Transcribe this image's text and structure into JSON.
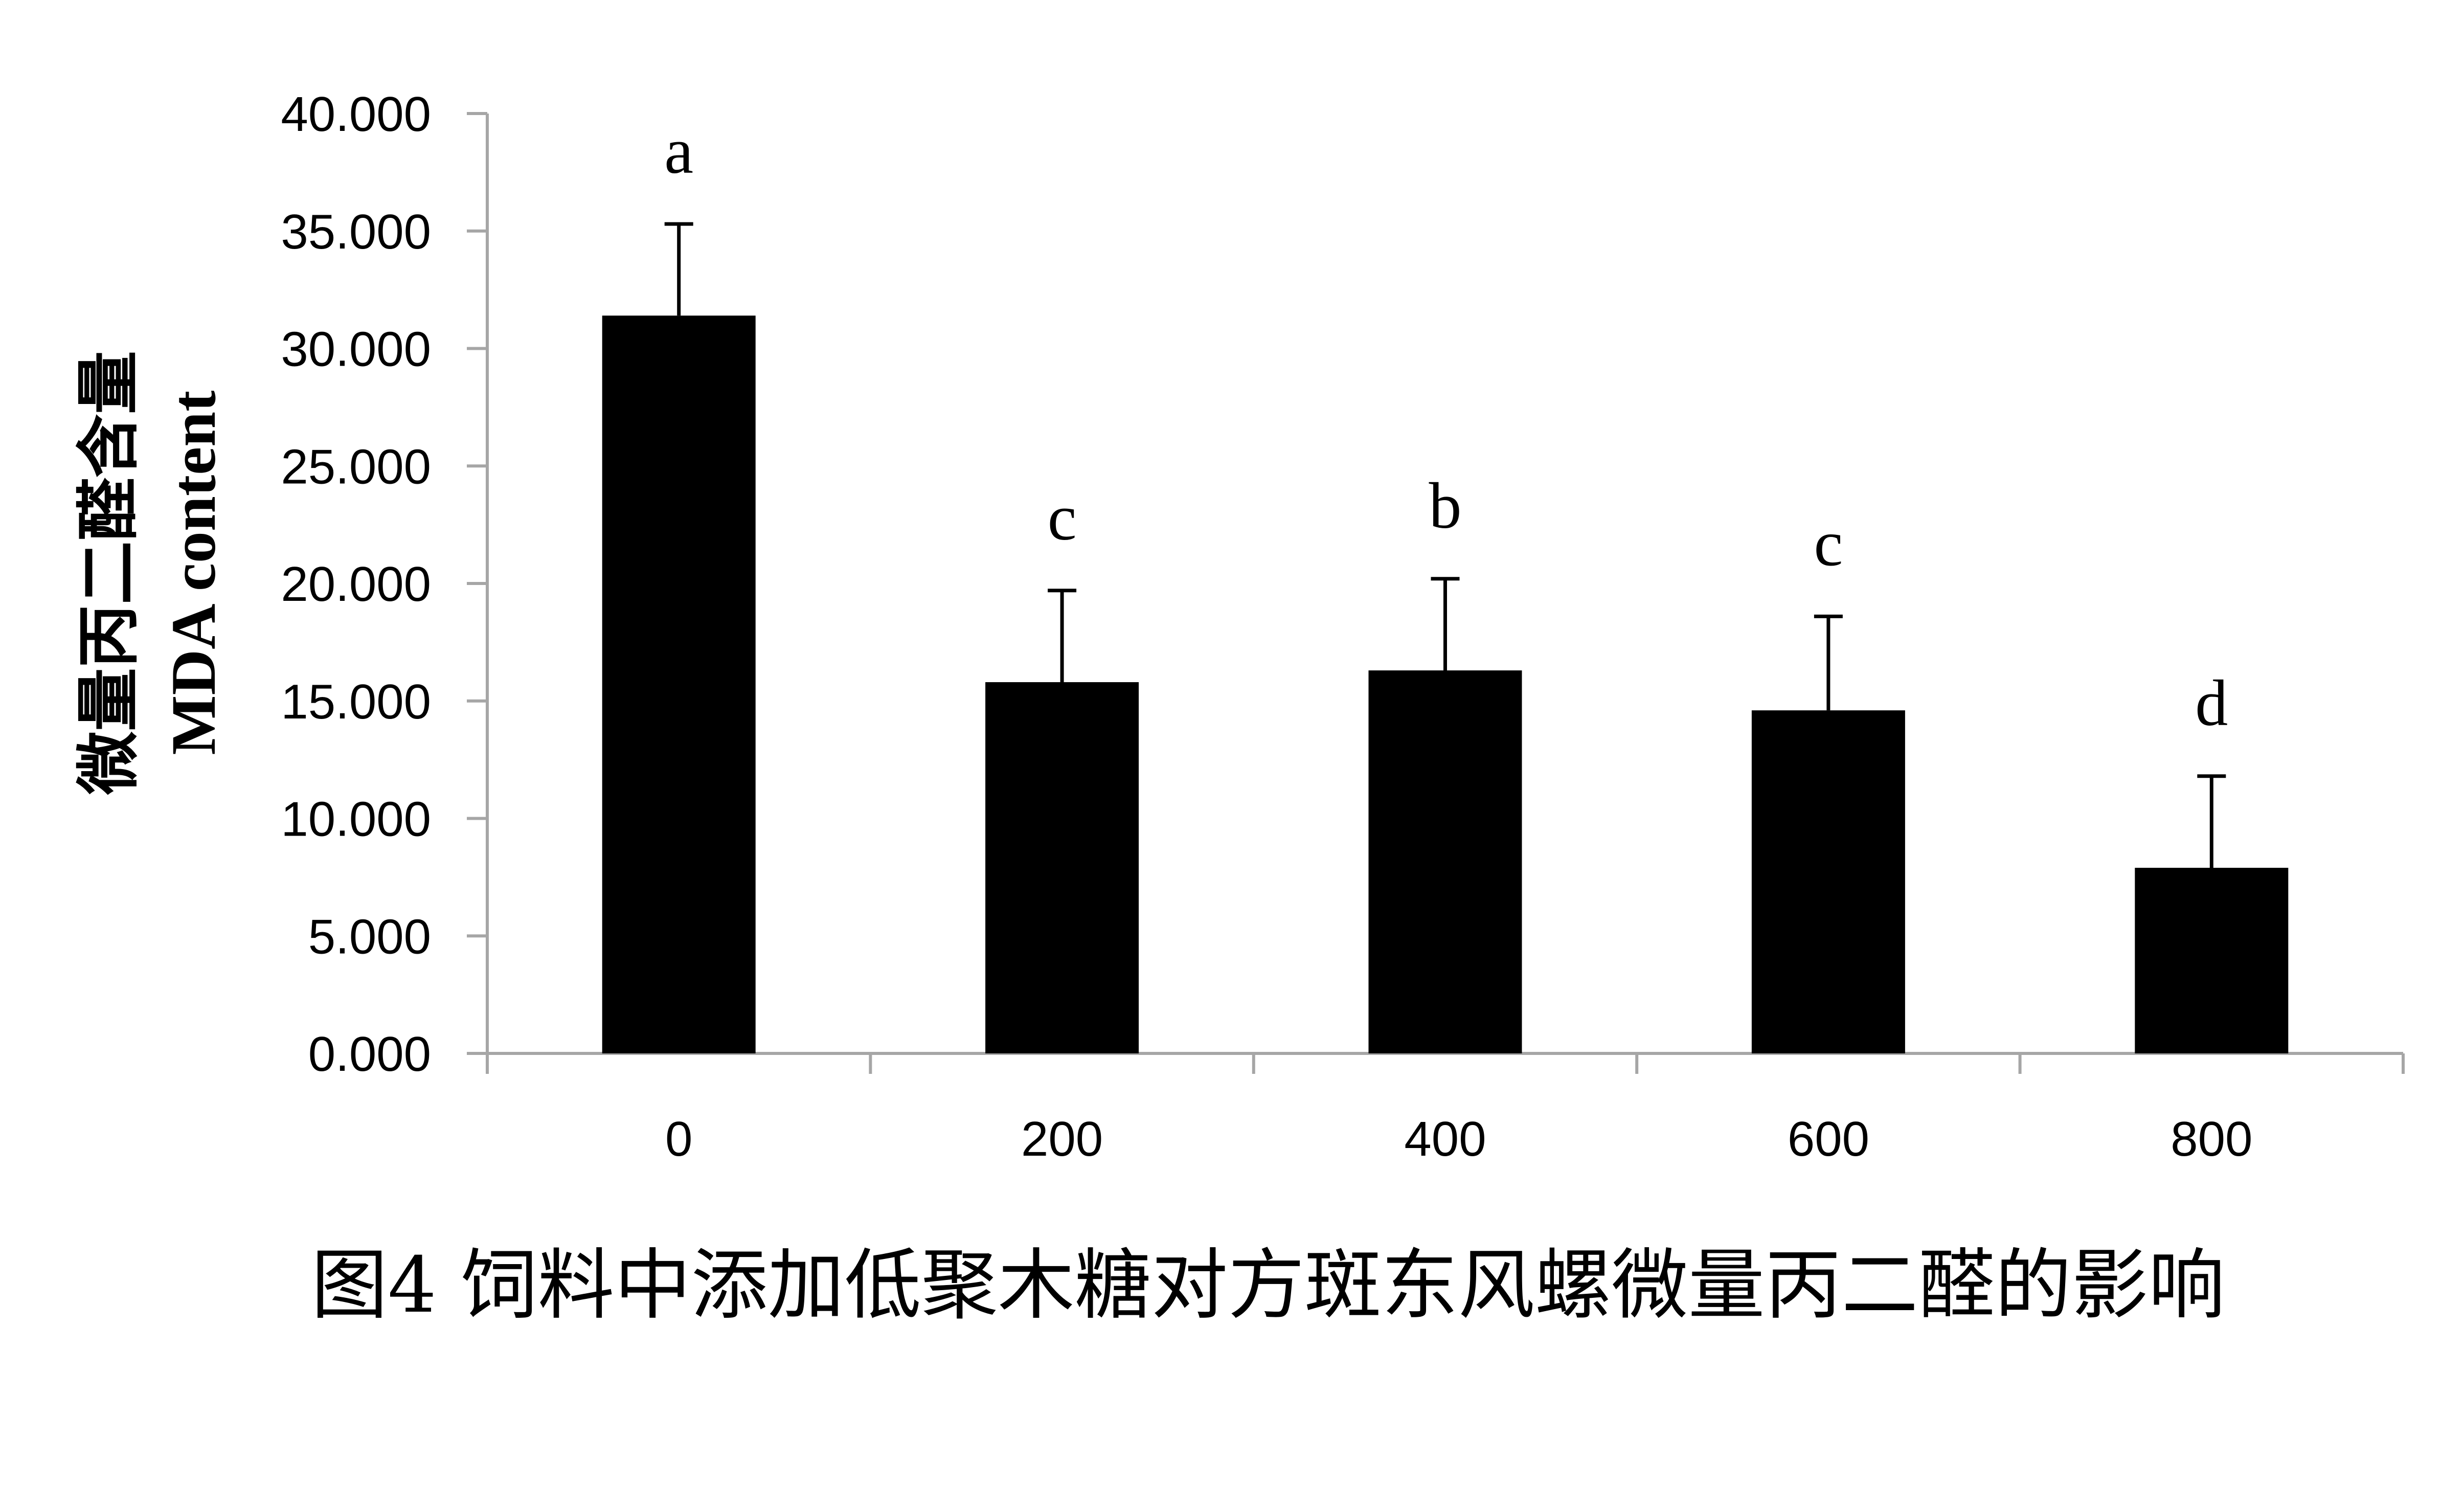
{
  "chart_data": {
    "type": "bar",
    "title": "图4 饲料中添加低聚木糖对方斑东风螺微量丙二醛的影响",
    "xlabel": "",
    "ylabel_cn": "微量丙二醛含量",
    "ylabel_en": "MDA content",
    "categories": [
      "0",
      "200",
      "400",
      "600",
      "800"
    ],
    "series": [
      {
        "values": [
          31.4,
          15.8,
          16.3,
          14.6,
          7.9
        ],
        "errors": [
          3.9,
          3.9,
          3.9,
          4.0,
          3.9
        ],
        "letters": [
          "a",
          "c",
          "b",
          "c",
          "d"
        ]
      }
    ],
    "ylim": [
      0,
      40
    ],
    "yticks": [
      "0.000",
      "5.000",
      "10.000",
      "15.000",
      "20.000",
      "25.000",
      "30.000",
      "35.000",
      "40.000"
    ],
    "grid": false,
    "legend": "none",
    "bar_color": "#000000",
    "axis_color": "#a6a6a6"
  }
}
